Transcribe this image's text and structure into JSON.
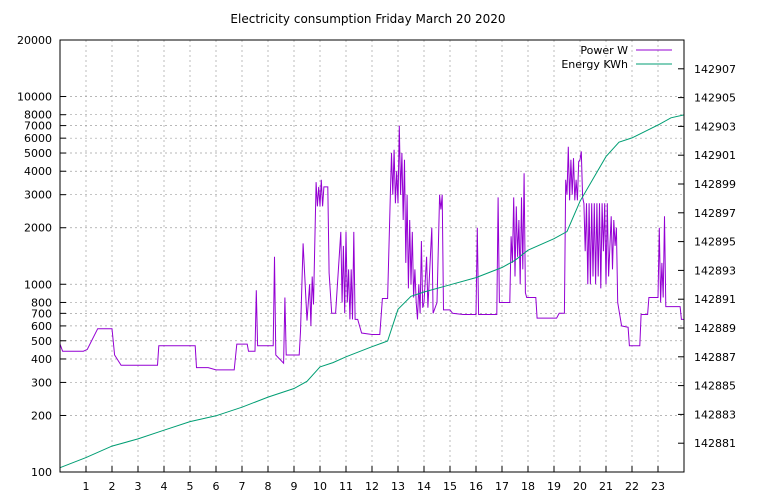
{
  "chart_data": {
    "type": "line",
    "title": "Electricity consumption Friday March 20 2020",
    "x_ticks": [
      "1",
      "2",
      "3",
      "4",
      "5",
      "6",
      "7",
      "8",
      "9",
      "10",
      "11",
      "12",
      "13",
      "14",
      "15",
      "16",
      "17",
      "18",
      "19",
      "20",
      "21",
      "22",
      "23"
    ],
    "x_range": [
      0,
      24
    ],
    "y1_scale": "log",
    "y1_range": [
      100,
      20000
    ],
    "y1_ticks": [
      "100",
      "200",
      "300",
      "400",
      "500",
      "600",
      "700",
      "800",
      "1000",
      "2000",
      "3000",
      "4000",
      "5000",
      "6000",
      "7000",
      "8000",
      "10000",
      "20000"
    ],
    "y2_range": [
      142879,
      142909
    ],
    "y2_ticks": [
      "142881",
      "142883",
      "142885",
      "142887",
      "142889",
      "142891",
      "142893",
      "142895",
      "142897",
      "142899",
      "142901",
      "142903",
      "142905",
      "142907"
    ],
    "grid": true,
    "legend_position": "top-right",
    "series": [
      {
        "name": "Power W",
        "axis": "y1",
        "color": "#9400d3",
        "points": [
          [
            0,
            480
          ],
          [
            0.1,
            440
          ],
          [
            0.4,
            440
          ],
          [
            0.9,
            440
          ],
          [
            1.05,
            450
          ],
          [
            1.45,
            580
          ],
          [
            1.75,
            580
          ],
          [
            2.0,
            580
          ],
          [
            2.1,
            420
          ],
          [
            2.35,
            370
          ],
          [
            2.8,
            370
          ],
          [
            3.4,
            370
          ],
          [
            3.75,
            370
          ],
          [
            3.8,
            470
          ],
          [
            4.4,
            470
          ],
          [
            5.2,
            470
          ],
          [
            5.25,
            360
          ],
          [
            5.7,
            360
          ],
          [
            6.0,
            350
          ],
          [
            6.7,
            350
          ],
          [
            6.8,
            480
          ],
          [
            7.2,
            480
          ],
          [
            7.25,
            440
          ],
          [
            7.5,
            440
          ],
          [
            7.55,
            930
          ],
          [
            7.6,
            470
          ],
          [
            8.2,
            470
          ],
          [
            8.25,
            1400
          ],
          [
            8.3,
            420
          ],
          [
            8.6,
            380
          ],
          [
            8.65,
            850
          ],
          [
            8.7,
            420
          ],
          [
            9.2,
            420
          ],
          [
            9.25,
            560
          ],
          [
            9.35,
            1650
          ],
          [
            9.5,
            640
          ],
          [
            9.6,
            1000
          ],
          [
            9.65,
            600
          ],
          [
            9.7,
            1100
          ],
          [
            9.75,
            780
          ],
          [
            9.85,
            3500
          ],
          [
            9.9,
            2600
          ],
          [
            9.95,
            3300
          ],
          [
            10.0,
            2600
          ],
          [
            10.05,
            3600
          ],
          [
            10.1,
            2600
          ],
          [
            10.15,
            3300
          ],
          [
            10.3,
            3300
          ],
          [
            10.35,
            1150
          ],
          [
            10.45,
            700
          ],
          [
            10.6,
            700
          ],
          [
            10.65,
            900
          ],
          [
            10.8,
            1900
          ],
          [
            10.85,
            800
          ],
          [
            10.9,
            1600
          ],
          [
            10.95,
            700
          ],
          [
            11.0,
            1900
          ],
          [
            11.05,
            800
          ],
          [
            11.1,
            1200
          ],
          [
            11.15,
            650
          ],
          [
            11.2,
            1200
          ],
          [
            11.25,
            650
          ],
          [
            11.3,
            1900
          ],
          [
            11.35,
            650
          ],
          [
            11.45,
            650
          ],
          [
            11.6,
            550
          ],
          [
            12.0,
            540
          ],
          [
            12.3,
            540
          ],
          [
            12.4,
            840
          ],
          [
            12.6,
            840
          ],
          [
            12.7,
            2800
          ],
          [
            12.75,
            5000
          ],
          [
            12.8,
            3000
          ],
          [
            12.85,
            5200
          ],
          [
            12.9,
            2700
          ],
          [
            12.95,
            4000
          ],
          [
            13.0,
            2700
          ],
          [
            13.05,
            7000
          ],
          [
            13.1,
            3000
          ],
          [
            13.15,
            5000
          ],
          [
            13.2,
            2200
          ],
          [
            13.25,
            4600
          ],
          [
            13.3,
            1300
          ],
          [
            13.35,
            3000
          ],
          [
            13.4,
            950
          ],
          [
            13.45,
            2200
          ],
          [
            13.5,
            1000
          ],
          [
            13.55,
            1900
          ],
          [
            13.6,
            850
          ],
          [
            13.65,
            1200
          ],
          [
            13.7,
            800
          ],
          [
            13.75,
            650
          ],
          [
            13.8,
            1000
          ],
          [
            13.85,
            700
          ],
          [
            13.9,
            1700
          ],
          [
            13.95,
            750
          ],
          [
            14.0,
            800
          ],
          [
            14.1,
            1400
          ],
          [
            14.15,
            750
          ],
          [
            14.3,
            2000
          ],
          [
            14.35,
            700
          ],
          [
            14.5,
            800
          ],
          [
            14.6,
            3000
          ],
          [
            14.65,
            2500
          ],
          [
            14.7,
            3000
          ],
          [
            14.75,
            730
          ],
          [
            15.0,
            730
          ],
          [
            15.1,
            700
          ],
          [
            15.5,
            690
          ],
          [
            16.0,
            690
          ],
          [
            16.05,
            2000
          ],
          [
            16.1,
            690
          ],
          [
            16.8,
            690
          ],
          [
            16.85,
            2900
          ],
          [
            16.9,
            800
          ],
          [
            17.3,
            800
          ],
          [
            17.35,
            1800
          ],
          [
            17.4,
            1300
          ],
          [
            17.45,
            2900
          ],
          [
            17.5,
            1100
          ],
          [
            17.55,
            2600
          ],
          [
            17.6,
            1400
          ],
          [
            17.65,
            2200
          ],
          [
            17.7,
            1000
          ],
          [
            17.75,
            2900
          ],
          [
            17.8,
            1200
          ],
          [
            17.85,
            3900
          ],
          [
            17.9,
            900
          ],
          [
            17.95,
            850
          ],
          [
            18.3,
            850
          ],
          [
            18.35,
            660
          ],
          [
            18.7,
            660
          ],
          [
            19.1,
            660
          ],
          [
            19.2,
            700
          ],
          [
            19.4,
            700
          ],
          [
            19.45,
            3600
          ],
          [
            19.5,
            3000
          ],
          [
            19.55,
            5400
          ],
          [
            19.6,
            2800
          ],
          [
            19.65,
            4600
          ],
          [
            19.7,
            3000
          ],
          [
            19.75,
            4700
          ],
          [
            19.8,
            2800
          ],
          [
            19.85,
            3600
          ],
          [
            19.9,
            2800
          ],
          [
            19.95,
            4500
          ],
          [
            20.0,
            4600
          ],
          [
            20.05,
            5100
          ],
          [
            20.1,
            2900
          ],
          [
            20.15,
            2700
          ],
          [
            20.2,
            1500
          ],
          [
            20.25,
            2700
          ],
          [
            20.3,
            1000
          ],
          [
            20.35,
            2700
          ],
          [
            20.4,
            1000
          ],
          [
            20.45,
            2700
          ],
          [
            20.5,
            1100
          ],
          [
            20.55,
            2700
          ],
          [
            20.6,
            1000
          ],
          [
            20.65,
            2700
          ],
          [
            20.7,
            1100
          ],
          [
            20.75,
            2700
          ],
          [
            20.8,
            950
          ],
          [
            20.85,
            2700
          ],
          [
            20.9,
            1500
          ],
          [
            20.95,
            2700
          ],
          [
            21.0,
            1000
          ],
          [
            21.05,
            2700
          ],
          [
            21.1,
            1100
          ],
          [
            21.2,
            2300
          ],
          [
            21.25,
            1200
          ],
          [
            21.3,
            2200
          ],
          [
            21.35,
            1600
          ],
          [
            21.4,
            2000
          ],
          [
            21.45,
            800
          ],
          [
            21.6,
            600
          ],
          [
            21.85,
            590
          ],
          [
            21.9,
            470
          ],
          [
            22.3,
            470
          ],
          [
            22.35,
            690
          ],
          [
            22.6,
            690
          ],
          [
            22.65,
            850
          ],
          [
            23.0,
            850
          ],
          [
            23.05,
            2000
          ],
          [
            23.1,
            800
          ],
          [
            23.15,
            1300
          ],
          [
            23.2,
            850
          ],
          [
            23.25,
            2300
          ],
          [
            23.3,
            760
          ],
          [
            23.6,
            760
          ],
          [
            23.85,
            760
          ],
          [
            23.9,
            650
          ],
          [
            24.0,
            650
          ]
        ]
      },
      {
        "name": "Energy KWh",
        "axis": "y2",
        "color": "#009e73",
        "points": [
          [
            0,
            142879.3
          ],
          [
            1,
            142880.0
          ],
          [
            2,
            142880.8
          ],
          [
            3,
            142881.3
          ],
          [
            4,
            142881.9
          ],
          [
            5,
            142882.5
          ],
          [
            6,
            142882.9
          ],
          [
            7,
            142883.5
          ],
          [
            8,
            142884.2
          ],
          [
            9,
            142884.8
          ],
          [
            9.5,
            142885.3
          ],
          [
            10.0,
            142886.3
          ],
          [
            10.5,
            142886.6
          ],
          [
            11.0,
            142887.0
          ],
          [
            12.0,
            142887.7
          ],
          [
            12.6,
            142888.1
          ],
          [
            13.0,
            142890.3
          ],
          [
            13.5,
            142891.2
          ],
          [
            14.0,
            142891.5
          ],
          [
            15.0,
            142892.0
          ],
          [
            16.0,
            142892.5
          ],
          [
            17.0,
            142893.2
          ],
          [
            17.5,
            142893.7
          ],
          [
            18.0,
            142894.4
          ],
          [
            19.0,
            142895.2
          ],
          [
            19.5,
            142895.7
          ],
          [
            20.0,
            142897.8
          ],
          [
            21.0,
            142900.9
          ],
          [
            21.5,
            142901.9
          ],
          [
            22.0,
            142902.2
          ],
          [
            23.0,
            142903.1
          ],
          [
            23.5,
            142903.6
          ],
          [
            24.0,
            142903.8
          ]
        ]
      }
    ]
  }
}
